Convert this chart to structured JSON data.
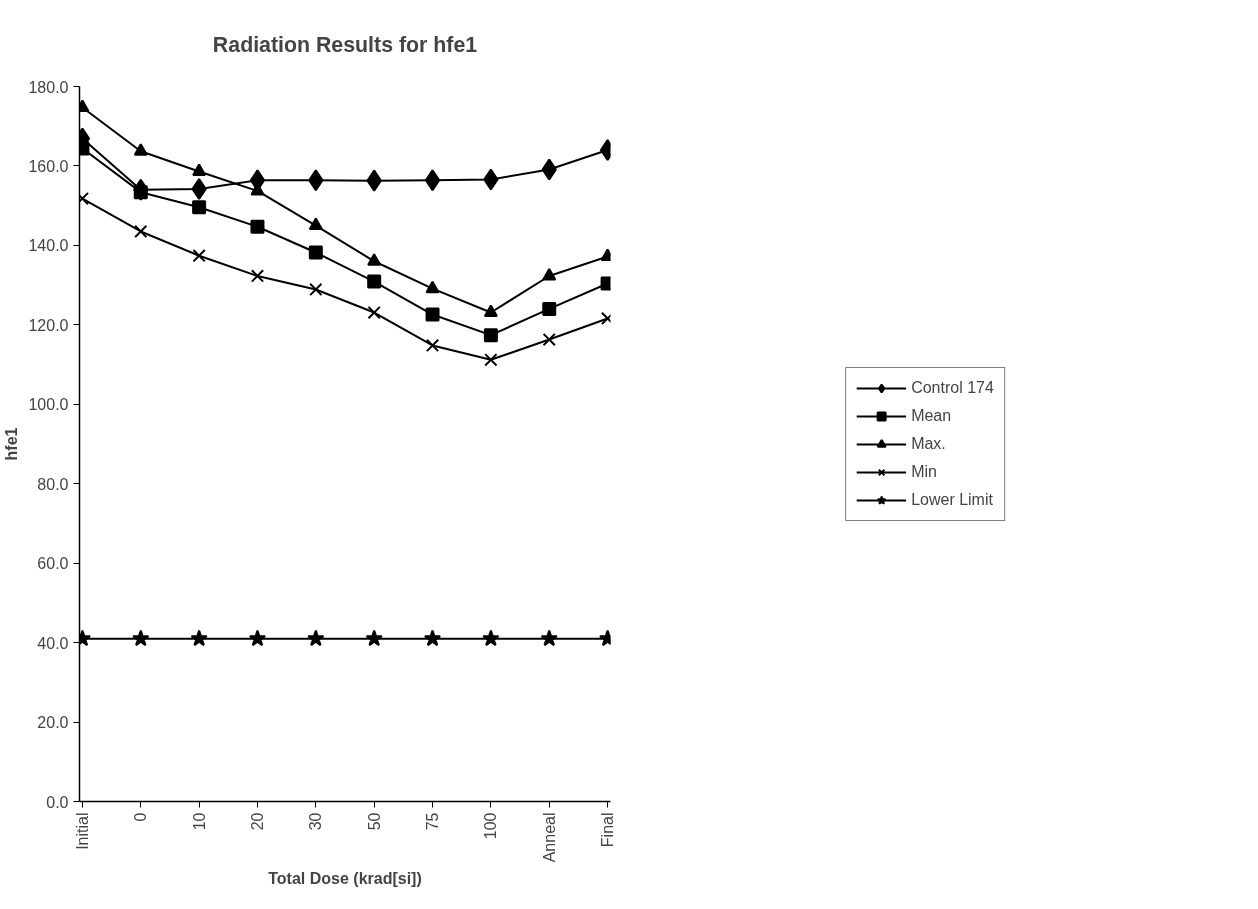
{
  "chart_data": {
    "type": "line",
    "title": "Radiation Results for hfe1",
    "xlabel": "Total Dose (krad[si])",
    "ylabel": "hfe1",
    "categories": [
      "Initial",
      "0",
      "10",
      "20",
      "30",
      "50",
      "75",
      "100",
      "Anneal",
      "Final"
    ],
    "ylim": [
      0,
      180
    ],
    "yticks": [
      {
        "value": 0,
        "label": "0.0"
      },
      {
        "value": 20,
        "label": "20.0"
      },
      {
        "value": 40,
        "label": "40.0"
      },
      {
        "value": 60,
        "label": "60.0"
      },
      {
        "value": 80,
        "label": "80.0"
      },
      {
        "value": 100,
        "label": "100.0"
      },
      {
        "value": 120,
        "label": "120.0"
      },
      {
        "value": 140,
        "label": "140.0"
      },
      {
        "value": 160,
        "label": "160.0"
      },
      {
        "value": 180,
        "label": "180.0"
      }
    ],
    "grid": false,
    "legend": "right",
    "series": [
      {
        "name": "Control 174",
        "color": "#000000",
        "marker": "diamond",
        "values": [
          166.9,
          154,
          154.2,
          156.4,
          156.4,
          156.3,
          156.4,
          156.6,
          159.1,
          164
        ]
      },
      {
        "name": "Mean",
        "color": "#000000",
        "marker": "square",
        "values": [
          164.4,
          153.4,
          149.6,
          144.7,
          138.2,
          130.9,
          122.6,
          117.4,
          124,
          130.4
        ]
      },
      {
        "name": "Max.",
        "color": "#000000",
        "marker": "triangle",
        "values": [
          174.7,
          163.7,
          158.6,
          153.7,
          145,
          136,
          129.1,
          123.1,
          132.3,
          137.2
        ]
      },
      {
        "name": "Min",
        "color": "#000000",
        "marker": "cross",
        "values": [
          151.8,
          143.5,
          137.4,
          132.3,
          128.9,
          123.1,
          114.8,
          111.2,
          116.3,
          121.6
        ]
      },
      {
        "name": "Lower Limit",
        "color": "#000000",
        "marker": "star",
        "values": [
          41,
          41,
          41,
          41,
          41,
          41,
          41,
          41,
          41,
          41
        ]
      }
    ]
  }
}
